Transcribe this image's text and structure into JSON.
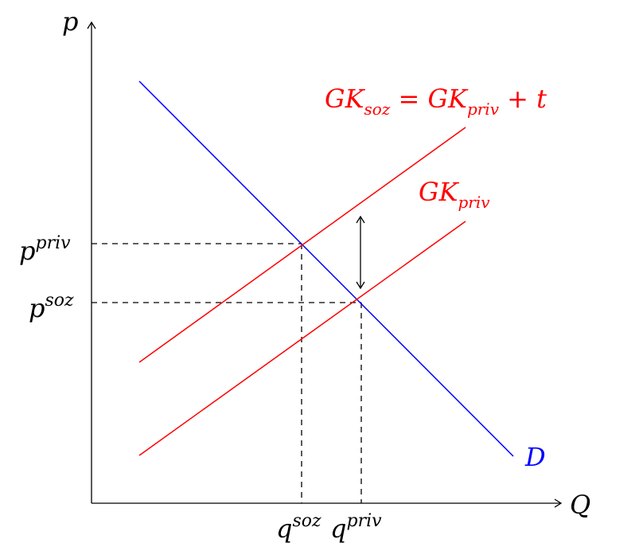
{
  "axes": {
    "y_label": "p",
    "x_label": "Q"
  },
  "curves": {
    "demand": {
      "label": "D",
      "color": "#0000ff"
    },
    "private_cost": {
      "label_main": "GK",
      "label_sub": "priv",
      "color": "#ff0000"
    },
    "social_cost": {
      "label_main": "GK",
      "label_sub": "soz",
      "label_eq": " = GK",
      "label_sub2": "priv",
      "label_tail": " + t",
      "color": "#ff0000"
    }
  },
  "levels": {
    "p_priv": {
      "base": "p",
      "sup": "priv"
    },
    "p_soz": {
      "base": "p",
      "sup": "soz"
    },
    "q_soz": {
      "base": "q",
      "sup": "soz"
    },
    "q_priv": {
      "base": "q",
      "sup": "priv"
    }
  }
}
